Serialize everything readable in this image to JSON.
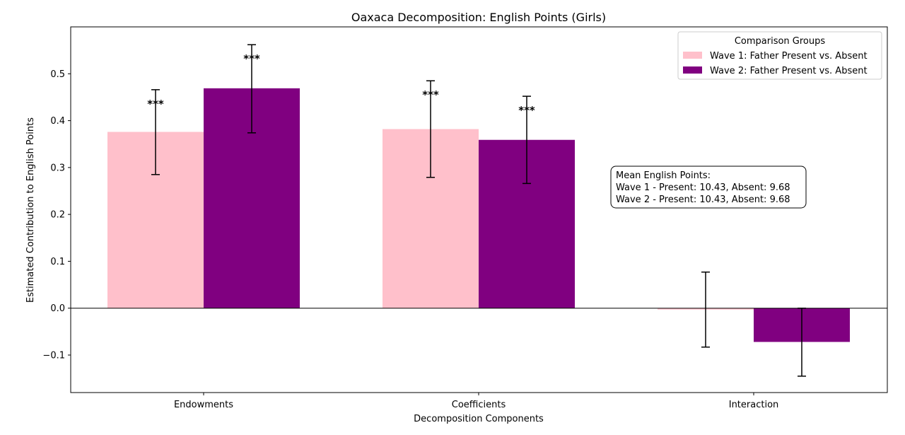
{
  "chart_data": {
    "type": "bar",
    "title": "Oaxaca Decomposition: English Points (Girls)",
    "xlabel": "Decomposition Components",
    "ylabel": "Estimated Contribution to English Points",
    "categories": [
      "Endowments",
      "Coefficients",
      "Interaction"
    ],
    "ylim": [
      -0.18,
      0.6
    ],
    "yticks": [
      -0.1,
      0.0,
      0.1,
      0.2,
      0.3,
      0.4,
      0.5
    ],
    "ytick_labels": [
      "−0.1",
      "0.0",
      "0.1",
      "0.2",
      "0.3",
      "0.4",
      "0.5"
    ],
    "series": [
      {
        "name": "Wave 1: Father Present vs. Absent",
        "color": "#ffc0cb",
        "values": [
          0.376,
          0.382,
          -0.003
        ],
        "err_low": [
          0.285,
          0.279,
          -0.083
        ],
        "err_high": [
          0.466,
          0.485,
          0.077
        ],
        "sig": [
          "***",
          "***",
          ""
        ]
      },
      {
        "name": "Wave 2: Father Present vs. Absent",
        "color": "#800080",
        "values": [
          0.469,
          0.359,
          -0.072
        ],
        "err_low": [
          0.374,
          0.266,
          -0.145
        ],
        "err_high": [
          0.562,
          0.452,
          0.0
        ],
        "sig": [
          "***",
          "***",
          ""
        ]
      }
    ],
    "legend": {
      "title": "Comparison Groups",
      "placement": "top-right"
    },
    "grid": false,
    "annotation": {
      "lines": [
        "Mean English Points:",
        "Wave 1 - Present: 10.43, Absent: 9.68",
        "Wave 2 - Present: 10.43, Absent: 9.68"
      ]
    }
  }
}
